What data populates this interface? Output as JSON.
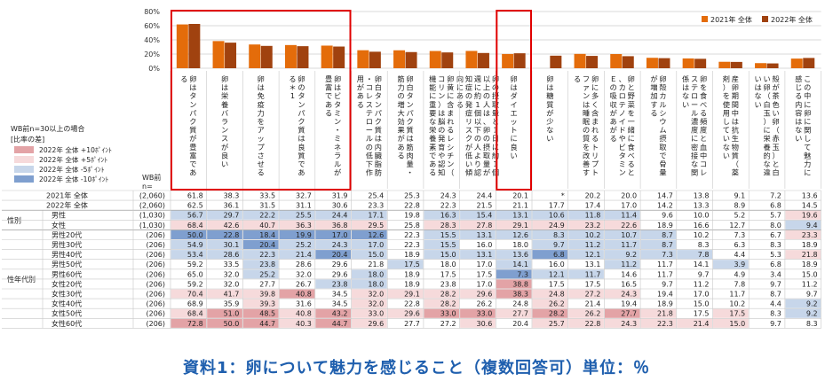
{
  "chart_data": {
    "type": "bar",
    "y_ticks": [
      "80%",
      "60%",
      "40%",
      "20%",
      "0%"
    ],
    "ylim": [
      0,
      80
    ],
    "legend": [
      "2021年 全体",
      "2022年 全体"
    ],
    "series_colors": [
      "#e46c0a",
      "#a0420f"
    ],
    "base_label": "WB前n=30以上の場合",
    "diff_legend": {
      "title": "[比率の差]",
      "items": [
        {
          "label": "2022年 全体 +10ﾎﾟｲﾝﾄ",
          "color": "#e3a3a6"
        },
        {
          "label": "2022年 全体 +5ﾎﾟｲﾝﾄ",
          "color": "#f6dadb"
        },
        {
          "label": "2022年 全体 -5ﾎﾟｲﾝﾄ",
          "color": "#c7d6ea"
        },
        {
          "label": "2022年 全体 -10ﾎﾟｲﾝﾄ",
          "color": "#7f9fcf"
        }
      ]
    },
    "wb_label": "WB前",
    "n_label": "n=",
    "categories": [
      "卵はタンパク質が豊富である",
      "卵は栄養バランスが良い",
      "卵は免疫力をアップさせる",
      "卵のタンパク質は良質である＊1",
      "卵はビタミン・ミネラルが豊富である",
      "卵白タンパク質は内臓脂肪・コレステロールの低下作用がある",
      "卵白タンパク質は筋肉量・筋力の増大効果がある",
      "卵黄に含まれるレシチン（コリン）は脳の発育や認知機能に重要な栄養素である",
      "卵の摂取量と1日に約1個以上の人は、卵の摂取量が週に約1個以下の人より認知症の発症リスクが低い傾向にある",
      "卵はダイエットに良い",
      "卵は糖質が少ない",
      "卵に多く含まれるトリプトファンは睡眠の質を改善する",
      "卵と野菜を一緒に食べると、カロテノイドやビタミンＥの吸収があがる",
      "卵殻カルシウム摂取で骨量が増加する",
      "卵を食べる頻度と血中コレステロール濃度に密接な関係はない",
      "産卵期間中は抗生物質（薬剤）を使用していない",
      "殻が茶色い卵（赤玉）と白い卵（白玉）に栄養的な違いはない",
      "この中に卵に関して魅力に感じる内容はない"
    ],
    "series": [
      {
        "name": "2021年 全体",
        "values": [
          61.8,
          38.3,
          33.5,
          32.7,
          31.9,
          25.4,
          25.3,
          24.3,
          24.4,
          20.1,
          null,
          20.2,
          20.0,
          14.7,
          13.8,
          9.1,
          7.2,
          13.6
        ]
      },
      {
        "name": "2022年 全体",
        "values": [
          62.5,
          36.1,
          31.5,
          31.1,
          30.6,
          23.3,
          22.8,
          22.3,
          21.5,
          21.1,
          17.7,
          17.4,
          17.0,
          14.2,
          13.3,
          8.9,
          6.8,
          14.5
        ]
      }
    ],
    "highlight_groups": [
      [
        0,
        4
      ],
      [
        9,
        9
      ]
    ],
    "table": {
      "rows": [
        {
          "group": "",
          "label": "2021年 全体",
          "n": "(2,060)",
          "values": [
            "61.8",
            "38.3",
            "33.5",
            "32.7",
            "31.9",
            "25.4",
            "25.3",
            "24.3",
            "24.4",
            "20.1",
            "*",
            "20.2",
            "20.0",
            "14.7",
            "13.8",
            "9.1",
            "7.2",
            "13.6"
          ],
          "shade": [
            0,
            0,
            0,
            0,
            0,
            0,
            0,
            0,
            0,
            0,
            0,
            0,
            0,
            0,
            0,
            0,
            0,
            0
          ]
        },
        {
          "group": "",
          "label": "2022年 全体",
          "n": "(2,060)",
          "values": [
            "62.5",
            "36.1",
            "31.5",
            "31.1",
            "30.6",
            "23.3",
            "22.8",
            "22.3",
            "21.5",
            "21.1",
            "17.7",
            "17.4",
            "17.0",
            "14.2",
            "13.3",
            "8.9",
            "6.8",
            "14.5"
          ],
          "shade": [
            0,
            0,
            0,
            0,
            0,
            0,
            0,
            0,
            0,
            0,
            0,
            0,
            0,
            0,
            0,
            0,
            0,
            0
          ]
        },
        {
          "group": "性別",
          "label": "男性",
          "n": "(1,030)",
          "values": [
            "56.7",
            "29.7",
            "22.2",
            "25.5",
            "24.4",
            "17.1",
            "19.8",
            "16.3",
            "15.4",
            "13.1",
            "10.6",
            "11.8",
            "11.4",
            "9.6",
            "10.0",
            "5.2",
            "5.7",
            "19.6"
          ],
          "shade": [
            -1,
            -1,
            -1,
            -1,
            -1,
            -1,
            0,
            -1,
            -1,
            -1,
            -1,
            -1,
            -1,
            0,
            0,
            0,
            0,
            1
          ]
        },
        {
          "group": "",
          "label": "女性",
          "n": "(1,030)",
          "values": [
            "68.4",
            "42.6",
            "40.7",
            "36.3",
            "36.8",
            "29.5",
            "25.8",
            "28.3",
            "27.8",
            "29.1",
            "24.9",
            "23.2",
            "22.6",
            "18.9",
            "16.6",
            "12.7",
            "8.0",
            "9.4"
          ],
          "shade": [
            1,
            1,
            1,
            1,
            1,
            1,
            0,
            1,
            1,
            1,
            1,
            1,
            1,
            0,
            0,
            0,
            0,
            -1
          ]
        },
        {
          "group": "性年代別",
          "label": "男性20代",
          "n": "(206)",
          "values": [
            "50.0",
            "22.8",
            "18.4",
            "19.9",
            "17.0",
            "12.6",
            "22.3",
            "15.5",
            "13.1",
            "12.6",
            "8.3",
            "10.2",
            "10.7",
            "8.7",
            "10.2",
            "7.3",
            "6.7",
            "23.3"
          ],
          "shade": [
            -2,
            -2,
            -2,
            -2,
            -2,
            -2,
            0,
            -1,
            -1,
            -1,
            -1,
            -1,
            -1,
            -1,
            0,
            0,
            0,
            1
          ]
        },
        {
          "group": "",
          "label": "男性30代",
          "n": "(206)",
          "values": [
            "54.9",
            "30.1",
            "20.4",
            "25.2",
            "24.3",
            "17.0",
            "22.3",
            "15.5",
            "16.0",
            "18.0",
            "9.7",
            "11.2",
            "11.7",
            "8.7",
            "8.3",
            "6.3",
            "8.3",
            "18.9"
          ],
          "shade": [
            -1,
            -1,
            -2,
            -1,
            -1,
            -1,
            0,
            -1,
            0,
            0,
            -1,
            -1,
            -1,
            -1,
            0,
            0,
            0,
            0
          ]
        },
        {
          "group": "",
          "label": "男性40代",
          "n": "(206)",
          "values": [
            "53.4",
            "28.6",
            "22.3",
            "21.4",
            "20.4",
            "15.0",
            "18.9",
            "15.0",
            "13.1",
            "13.6",
            "6.8",
            "12.1",
            "9.2",
            "7.3",
            "7.8",
            "4.4",
            "5.3",
            "21.8"
          ],
          "shade": [
            -1,
            -1,
            -1,
            -1,
            -2,
            -1,
            0,
            -1,
            -1,
            -1,
            -2,
            -1,
            -1,
            -1,
            -1,
            0,
            0,
            1
          ]
        },
        {
          "group": "",
          "label": "男性50代",
          "n": "(206)",
          "values": [
            "59.2",
            "33.5",
            "23.8",
            "28.6",
            "29.6",
            "21.8",
            "17.5",
            "18.0",
            "17.0",
            "14.1",
            "16.0",
            "13.1",
            "11.2",
            "11.7",
            "14.1",
            "3.9",
            "6.8",
            "18.9"
          ],
          "shade": [
            0,
            0,
            -1,
            0,
            0,
            0,
            -1,
            0,
            0,
            -1,
            0,
            0,
            -1,
            0,
            0,
            -1,
            0,
            0
          ]
        },
        {
          "group": "",
          "label": "男性60代",
          "n": "(206)",
          "values": [
            "65.0",
            "32.0",
            "25.2",
            "32.0",
            "29.6",
            "18.0",
            "18.9",
            "17.5",
            "17.5",
            "7.3",
            "12.1",
            "11.7",
            "14.6",
            "11.7",
            "9.7",
            "4.9",
            "3.4",
            "15.0"
          ],
          "shade": [
            0,
            0,
            -1,
            0,
            0,
            -1,
            0,
            0,
            0,
            -2,
            -1,
            -1,
            0,
            0,
            0,
            0,
            0,
            0
          ]
        },
        {
          "group": "",
          "label": "女性20代",
          "n": "(206)",
          "values": [
            "59.2",
            "32.0",
            "27.7",
            "26.7",
            "23.8",
            "18.0",
            "18.9",
            "23.8",
            "17.0",
            "38.8",
            "17.5",
            "17.5",
            "16.5",
            "9.7",
            "11.2",
            "7.8",
            "9.7",
            "11.2"
          ],
          "shade": [
            0,
            0,
            0,
            0,
            -1,
            -1,
            0,
            0,
            0,
            2,
            0,
            0,
            0,
            0,
            0,
            0,
            0,
            0
          ]
        },
        {
          "group": "",
          "label": "女性30代",
          "n": "(206)",
          "values": [
            "70.4",
            "41.7",
            "39.8",
            "40.8",
            "34.5",
            "32.0",
            "29.1",
            "28.2",
            "29.6",
            "38.3",
            "24.8",
            "27.2",
            "24.3",
            "19.4",
            "17.0",
            "11.7",
            "8.7",
            "9.7"
          ],
          "shade": [
            1,
            1,
            1,
            2,
            0,
            1,
            1,
            1,
            1,
            2,
            1,
            1,
            1,
            0,
            0,
            0,
            0,
            0
          ]
        },
        {
          "group": "",
          "label": "女性40代",
          "n": "(206)",
          "values": [
            "68.9",
            "35.9",
            "39.3",
            "31.6",
            "34.5",
            "32.0",
            "22.8",
            "28.2",
            "26.2",
            "24.8",
            "26.2",
            "21.4",
            "19.4",
            "18.9",
            "15.0",
            "10.2",
            "4.4",
            "9.2"
          ],
          "shade": [
            0,
            0,
            1,
            0,
            0,
            1,
            0,
            1,
            0,
            0,
            1,
            0,
            0,
            0,
            0,
            0,
            0,
            -1
          ]
        },
        {
          "group": "",
          "label": "女性50代",
          "n": "(206)",
          "values": [
            "68.4",
            "51.0",
            "48.5",
            "40.8",
            "43.2",
            "33.0",
            "29.6",
            "33.0",
            "33.0",
            "27.7",
            "28.2",
            "26.2",
            "27.7",
            "21.8",
            "17.5",
            "17.5",
            "8.3",
            "9.2"
          ],
          "shade": [
            1,
            2,
            2,
            1,
            2,
            1,
            1,
            2,
            2,
            1,
            2,
            1,
            2,
            1,
            0,
            1,
            0,
            -1
          ]
        },
        {
          "group": "",
          "label": "女性60代",
          "n": "(206)",
          "values": [
            "72.8",
            "50.0",
            "44.7",
            "40.3",
            "44.7",
            "29.6",
            "27.7",
            "27.2",
            "30.6",
            "20.4",
            "25.7",
            "22.8",
            "24.3",
            "22.3",
            "21.4",
            "15.0",
            "9.7",
            "8.3"
          ],
          "shade": [
            2,
            2,
            2,
            1,
            2,
            1,
            0,
            0,
            1,
            0,
            1,
            1,
            1,
            1,
            1,
            1,
            0,
            0
          ]
        }
      ]
    }
  },
  "caption": "資料1：卵について魅力を感じること（複数回答可）単位：％"
}
